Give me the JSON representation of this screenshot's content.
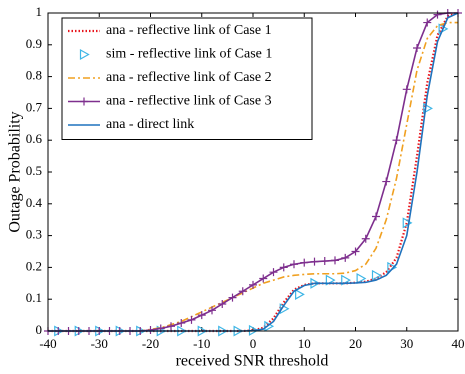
{
  "chart_data": {
    "type": "line",
    "xlabel": "received SNR threshold",
    "ylabel": "Outage Probability",
    "x": [
      -40,
      -38,
      -36,
      -34,
      -32,
      -30,
      -28,
      -26,
      -24,
      -22,
      -20,
      -18,
      -16,
      -14,
      -12,
      -10,
      -8,
      -6,
      -4,
      -2,
      0,
      2,
      4,
      6,
      8,
      10,
      12,
      14,
      16,
      18,
      20,
      22,
      24,
      26,
      28,
      30,
      32,
      34,
      36,
      38,
      40
    ],
    "xlim": [
      -40,
      40
    ],
    "xticks": [
      -40,
      -30,
      -20,
      -10,
      0,
      10,
      20,
      30,
      40
    ],
    "ylim": [
      0,
      1
    ],
    "yticks": [
      0,
      0.1,
      0.2,
      0.3,
      0.4,
      0.5,
      0.6,
      0.7,
      0.8,
      0.9,
      1
    ],
    "grid": false,
    "legend": "upper-left",
    "series": [
      {
        "name": "ana - reflective link of Case 1",
        "color": "#e8141c",
        "dash": "dotted",
        "values": [
          0,
          0,
          0,
          0,
          0,
          0,
          0,
          0,
          0,
          0,
          0,
          0,
          0,
          0,
          0,
          0,
          0,
          0,
          0,
          0,
          0.002,
          0.01,
          0.04,
          0.09,
          0.13,
          0.145,
          0.15,
          0.15,
          0.15,
          0.15,
          0.152,
          0.155,
          0.165,
          0.185,
          0.23,
          0.34,
          0.55,
          0.78,
          0.93,
          0.99,
          1
        ]
      },
      {
        "name": "sim - reflective link of Case 1",
        "color": "#3fb6e6",
        "marker": "triangle",
        "x": [
          -38,
          -34,
          -30,
          -26,
          -22,
          -18,
          -14,
          -10,
          -6,
          -3,
          0,
          3,
          6,
          9,
          12,
          15,
          18,
          21,
          24,
          27,
          30,
          34,
          37
        ],
        "values": [
          0,
          0,
          0,
          0,
          0,
          0,
          0,
          0,
          0,
          0,
          0.002,
          0.015,
          0.07,
          0.115,
          0.15,
          0.16,
          0.16,
          0.165,
          0.175,
          0.2,
          0.34,
          0.7,
          0.95
        ]
      },
      {
        "name": "ana - reflective link of Case 2",
        "color": "#f0a020",
        "dash": "dashdot",
        "values": [
          0,
          0,
          0,
          0,
          0,
          0,
          0,
          0,
          0,
          0,
          0.005,
          0.01,
          0.02,
          0.03,
          0.045,
          0.06,
          0.075,
          0.09,
          0.105,
          0.12,
          0.135,
          0.15,
          0.16,
          0.17,
          0.175,
          0.178,
          0.18,
          0.18,
          0.18,
          0.182,
          0.19,
          0.21,
          0.26,
          0.35,
          0.48,
          0.65,
          0.82,
          0.92,
          0.96,
          0.97,
          0.97
        ]
      },
      {
        "name": "ana - reflective link of Case 3",
        "color": "#7e2f8e",
        "dash": "solid",
        "marker": "plus",
        "values": [
          0,
          0,
          0,
          0,
          0,
          0,
          0,
          0,
          0,
          0,
          0.003,
          0.008,
          0.015,
          0.025,
          0.035,
          0.05,
          0.065,
          0.085,
          0.105,
          0.125,
          0.145,
          0.165,
          0.185,
          0.2,
          0.21,
          0.215,
          0.218,
          0.22,
          0.222,
          0.23,
          0.25,
          0.29,
          0.36,
          0.47,
          0.6,
          0.76,
          0.89,
          0.97,
          0.995,
          1,
          1
        ]
      },
      {
        "name": "ana - direct link",
        "color": "#1f72bd",
        "dash": "solid",
        "values": [
          0,
          0,
          0,
          0,
          0,
          0,
          0,
          0,
          0,
          0,
          0,
          0,
          0,
          0,
          0,
          0,
          0,
          0,
          0,
          0,
          0.001,
          0.006,
          0.03,
          0.08,
          0.125,
          0.143,
          0.15,
          0.15,
          0.15,
          0.15,
          0.151,
          0.153,
          0.16,
          0.175,
          0.21,
          0.3,
          0.5,
          0.74,
          0.91,
          0.985,
          1
        ]
      }
    ]
  }
}
